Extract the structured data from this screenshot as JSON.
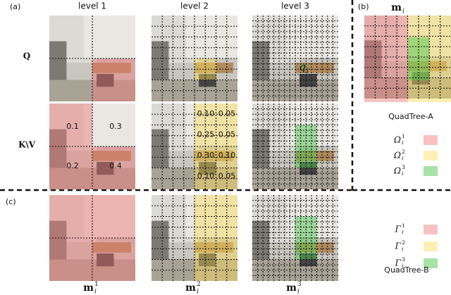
{
  "labels": {
    "a": "(a)",
    "b": "(b)",
    "c": "(c)"
  },
  "columns": [
    "level 1",
    "level 2",
    "level 3"
  ],
  "rows": {
    "q": "Q",
    "kv": "K\\V"
  },
  "q_point": {
    "base": "q",
    "sub": "i"
  },
  "kv_values": {
    "level1": [
      [
        "0.1",
        "0.3"
      ],
      [
        "0.2",
        "0.4"
      ]
    ],
    "level2": [
      [
        "0.10",
        "0.05"
      ],
      [
        "0.25",
        "0.05"
      ],
      [
        "0.30",
        "0.10"
      ],
      [
        "0.10",
        "0.05"
      ]
    ]
  },
  "bottom_labels": [
    {
      "base": "m",
      "sub": "i",
      "sup": "1"
    },
    {
      "base": "m",
      "sub": "i",
      "sup": "2"
    },
    {
      "base": "m",
      "sub": "i",
      "sup": "3"
    }
  ],
  "panel_b": {
    "title": {
      "base": "m",
      "sub": "i"
    },
    "name": "QuadTree-A",
    "legend": [
      {
        "base": "Ω",
        "sub": "i",
        "sup": "1"
      },
      {
        "base": "Ω",
        "sub": "i",
        "sup": "2"
      },
      {
        "base": "Ω",
        "sub": "i",
        "sup": "3"
      }
    ]
  },
  "quadtree_b": {
    "name": "QuadTree-B",
    "legend": [
      {
        "base": "Γ",
        "sub": "i",
        "sup": "1"
      },
      {
        "base": "Γ",
        "sub": "i",
        "sup": "2"
      },
      {
        "base": "Γ",
        "sub": "i",
        "sup": "3"
      }
    ]
  }
}
